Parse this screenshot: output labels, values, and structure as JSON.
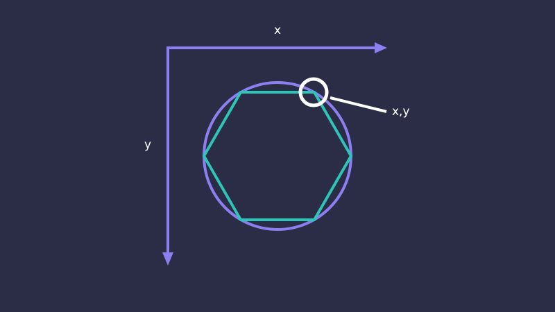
{
  "diagram": {
    "x_axis_label": "x",
    "y_axis_label": "y",
    "point_label": "x,y",
    "shapes": {
      "circle": "circumscribed-circle",
      "hexagon": "regular-hexagon",
      "vertex_count": 6
    },
    "colors": {
      "background": "#2b2c45",
      "axis": "#8c7ff0",
      "circle": "#8c7ff0",
      "hexagon": "#2ec4b6",
      "highlight": "#ffffff",
      "text": "#ffffff"
    }
  }
}
